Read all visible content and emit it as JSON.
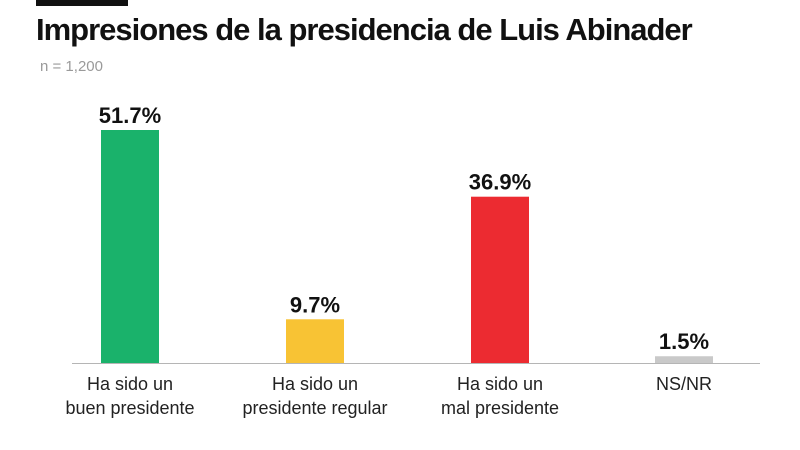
{
  "chart_data": {
    "type": "bar",
    "title": "Impresiones de la presidencia de Luis Abinader",
    "subtitle": "n = 1,200",
    "categories": [
      [
        "Ha sido un",
        "buen presidente"
      ],
      [
        "Ha sido un",
        "presidente regular"
      ],
      [
        "Ha sido un",
        "mal presidente"
      ],
      [
        "NS/NR"
      ]
    ],
    "values": [
      51.7,
      9.7,
      36.9,
      1.5
    ],
    "value_labels": [
      "51.7%",
      "9.7%",
      "36.9%",
      "1.5%"
    ],
    "colors": [
      "#1ab26b",
      "#f8c334",
      "#ec2b31",
      "#c9c9c9"
    ],
    "xlabel": "",
    "ylabel": "",
    "ylim": [
      0,
      51.7
    ],
    "grid": false,
    "legend": "none"
  }
}
